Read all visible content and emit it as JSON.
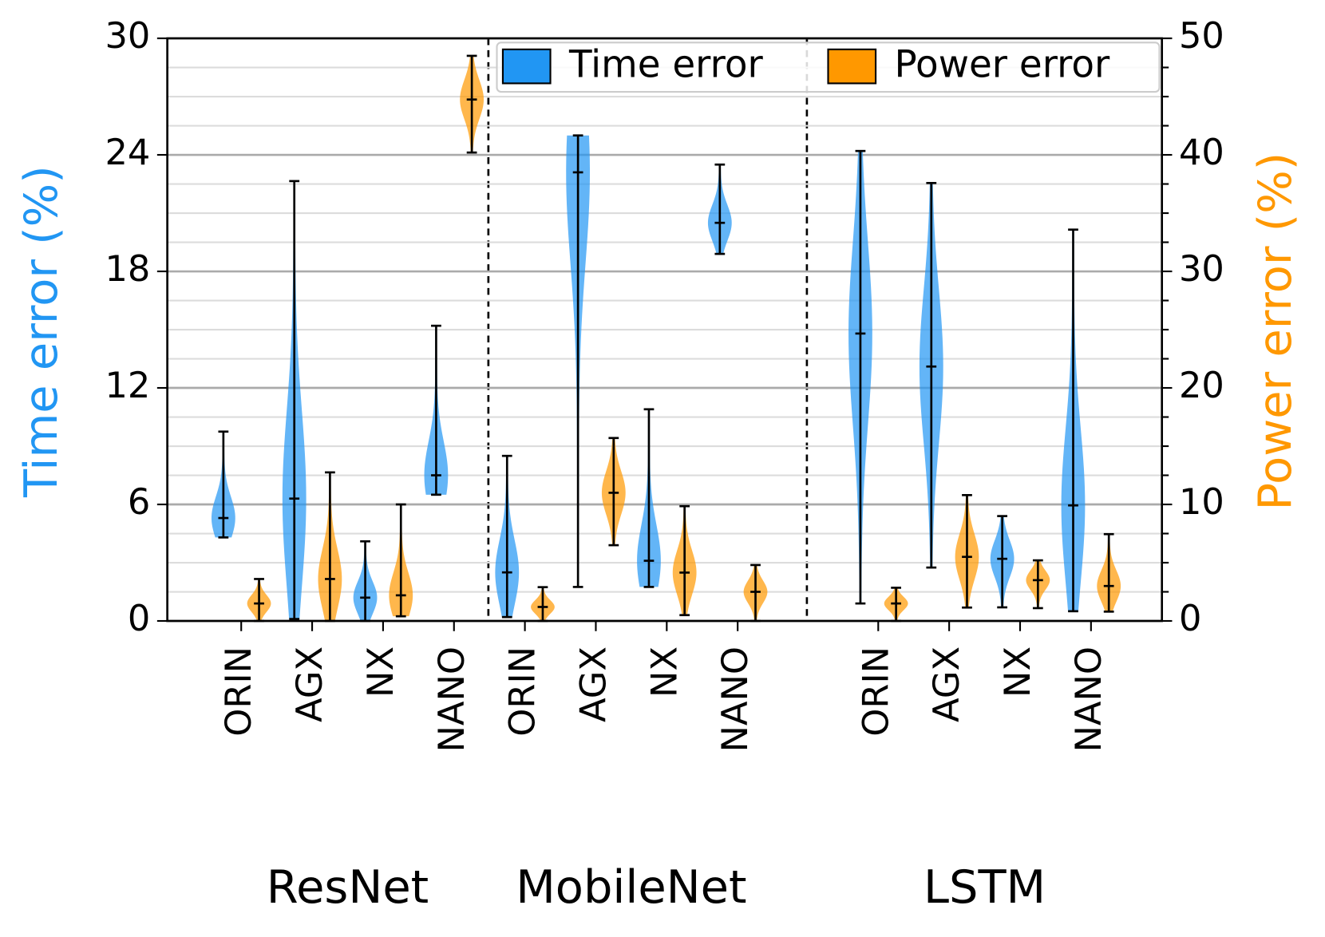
{
  "chart_data": {
    "type": "violin",
    "ylabel": "Time error (%)",
    "y2label": "Power error (%)",
    "ylim": [
      0,
      30
    ],
    "yticks": [
      0,
      6,
      12,
      18,
      24,
      30
    ],
    "y2lim": [
      0,
      50
    ],
    "y2ticks": [
      0,
      10,
      20,
      30,
      40,
      50
    ],
    "y2minorticks": [
      2.5,
      5,
      7.5,
      12.5,
      15,
      17.5,
      22.5,
      25,
      27.5,
      32.5,
      35,
      37.5,
      42.5,
      45,
      47.5
    ],
    "grid": true,
    "legend": "upper right",
    "groups": [
      "ResNet",
      "MobileNet",
      "LSTM"
    ],
    "categories": [
      "ORIN",
      "AGX",
      "NX",
      "NANO",
      "ORIN",
      "AGX",
      "NX",
      "NANO",
      "ORIN",
      "AGX",
      "NX",
      "NANO"
    ],
    "series": [
      {
        "name": "Time error",
        "color": "#2196f3",
        "min": [
          4.3,
          0.1,
          0,
          6.5,
          0.2,
          1.75,
          1.75,
          18.9,
          0.9,
          2.75,
          0.7,
          0.5
        ],
        "median": [
          5.3,
          6.3,
          1.2,
          7.5,
          2.5,
          23.1,
          3.1,
          20.5,
          14.8,
          13.1,
          3.2,
          5.95
        ],
        "max": [
          9.75,
          22.65,
          4.1,
          15.2,
          8.5,
          25.0,
          10.9,
          23.5,
          24.2,
          22.55,
          5.4,
          20.15
        ]
      },
      {
        "name": "Power error",
        "color": "#ff9800",
        "axis": "y2",
        "min": [
          0,
          0,
          0.4,
          40.2,
          0,
          6.5,
          0.5,
          0,
          0,
          1.15,
          1.1,
          0.8
        ],
        "median": [
          1.5,
          3.6,
          2.2,
          44.75,
          1.2,
          11.0,
          4.15,
          2.5,
          1.5,
          5.5,
          3.5,
          3.0
        ],
        "max": [
          3.6,
          12.75,
          10.0,
          48.5,
          2.9,
          15.7,
          9.85,
          4.8,
          2.85,
          10.8,
          5.2,
          7.45
        ]
      }
    ]
  }
}
